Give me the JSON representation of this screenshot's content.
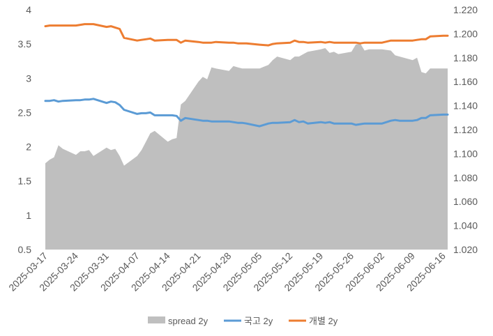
{
  "chart_data": {
    "type": "line",
    "title": "",
    "x_tick_labels": [
      "2025-03-17",
      "2025-03-24",
      "2025-03-31",
      "2025-04-07",
      "2025-04-14",
      "2025-04-21",
      "2025-04-28",
      "2025-05-05",
      "2025-05-12",
      "2025-05-19",
      "2025-05-26",
      "2025-06-02",
      "2025-06-09",
      "2025-06-16"
    ],
    "left_axis": {
      "min": 0.5,
      "max": 4,
      "ticks": [
        "0.5",
        "1",
        "1.5",
        "2",
        "2.5",
        "3",
        "3.5",
        "4"
      ]
    },
    "right_axis": {
      "min": 1.02,
      "max": 1.22,
      "ticks": [
        "1.020",
        "1.040",
        "1.060",
        "1.080",
        "1.100",
        "1.120",
        "1.140",
        "1.160",
        "1.180",
        "1.200",
        "1.220"
      ]
    },
    "x": [
      "2025-03-17",
      "2025-03-18",
      "2025-03-19",
      "2025-03-20",
      "2025-03-21",
      "2025-03-24",
      "2025-03-25",
      "2025-03-26",
      "2025-03-27",
      "2025-03-28",
      "2025-03-31",
      "2025-04-01",
      "2025-04-02",
      "2025-04-03",
      "2025-04-04",
      "2025-04-07",
      "2025-04-08",
      "2025-04-09",
      "2025-04-10",
      "2025-04-11",
      "2025-04-14",
      "2025-04-15",
      "2025-04-16",
      "2025-04-17",
      "2025-04-18",
      "2025-04-21",
      "2025-04-22",
      "2025-04-23",
      "2025-04-24",
      "2025-04-25",
      "2025-04-28",
      "2025-04-29",
      "2025-04-30",
      "2025-05-01",
      "2025-05-02",
      "2025-05-05",
      "2025-05-07",
      "2025-05-08",
      "2025-05-09",
      "2025-05-12",
      "2025-05-13",
      "2025-05-14",
      "2025-05-15",
      "2025-05-16",
      "2025-05-19",
      "2025-05-20",
      "2025-05-21",
      "2025-05-22",
      "2025-05-23",
      "2025-05-26",
      "2025-05-27",
      "2025-05-28",
      "2025-05-29",
      "2025-05-30",
      "2025-06-02",
      "2025-06-04",
      "2025-06-05",
      "2025-06-06",
      "2025-06-09",
      "2025-06-10",
      "2025-06-11",
      "2025-06-12",
      "2025-06-13",
      "2025-06-16",
      "2025-06-17"
    ],
    "series": [
      {
        "name": "spread 2y",
        "axis": "right",
        "kind": "area",
        "color": "#bfbfbf",
        "values": [
          1.092,
          1.095,
          1.097,
          1.107,
          1.104,
          1.099,
          1.102,
          1.102,
          1.103,
          1.098,
          1.105,
          1.103,
          1.104,
          1.098,
          1.09,
          1.098,
          1.103,
          1.11,
          1.117,
          1.119,
          1.11,
          1.112,
          1.113,
          1.141,
          1.144,
          1.16,
          1.164,
          1.162,
          1.172,
          1.171,
          1.169,
          1.173,
          1.172,
          1.171,
          1.171,
          1.171,
          1.174,
          1.178,
          1.181,
          1.178,
          1.181,
          1.181,
          1.183,
          1.185,
          1.187,
          1.188,
          1.184,
          1.185,
          1.183,
          1.185,
          1.191,
          1.192,
          1.186,
          1.187,
          1.187,
          1.186,
          1.182,
          1.181,
          1.178,
          1.18,
          1.168,
          1.167,
          1.171,
          1.171,
          1.171
        ]
      },
      {
        "name": "국고 2y",
        "axis": "left",
        "kind": "line",
        "color": "#5b9bd5",
        "values": [
          2.67,
          2.67,
          2.68,
          2.66,
          2.67,
          2.68,
          2.68,
          2.69,
          2.69,
          2.7,
          2.64,
          2.66,
          2.65,
          2.61,
          2.54,
          2.48,
          2.49,
          2.49,
          2.5,
          2.46,
          2.46,
          2.46,
          2.45,
          2.38,
          2.42,
          2.39,
          2.38,
          2.38,
          2.37,
          2.37,
          2.37,
          2.36,
          2.35,
          2.35,
          2.34,
          2.3,
          2.34,
          2.35,
          2.35,
          2.36,
          2.39,
          2.36,
          2.37,
          2.34,
          2.36,
          2.35,
          2.36,
          2.34,
          2.34,
          2.34,
          2.32,
          2.33,
          2.34,
          2.34,
          2.34,
          2.38,
          2.39,
          2.38,
          2.38,
          2.39,
          2.42,
          2.42,
          2.46,
          2.47,
          2.47
        ]
      },
      {
        "name": "개별 2y",
        "axis": "left",
        "kind": "line",
        "color": "#ed7d31",
        "values": [
          3.76,
          3.77,
          3.77,
          3.77,
          3.77,
          3.77,
          3.78,
          3.79,
          3.79,
          3.79,
          3.75,
          3.76,
          3.74,
          3.72,
          3.59,
          3.55,
          3.56,
          3.57,
          3.58,
          3.55,
          3.56,
          3.56,
          3.56,
          3.52,
          3.55,
          3.53,
          3.52,
          3.52,
          3.52,
          3.53,
          3.52,
          3.52,
          3.51,
          3.51,
          3.51,
          3.49,
          3.48,
          3.5,
          3.51,
          3.52,
          3.55,
          3.53,
          3.53,
          3.52,
          3.53,
          3.52,
          3.53,
          3.52,
          3.52,
          3.52,
          3.52,
          3.51,
          3.52,
          3.52,
          3.52,
          3.55,
          3.55,
          3.55,
          3.55,
          3.56,
          3.57,
          3.57,
          3.61,
          3.62,
          3.62
        ]
      }
    ],
    "grid": false,
    "legend": "bottom"
  }
}
